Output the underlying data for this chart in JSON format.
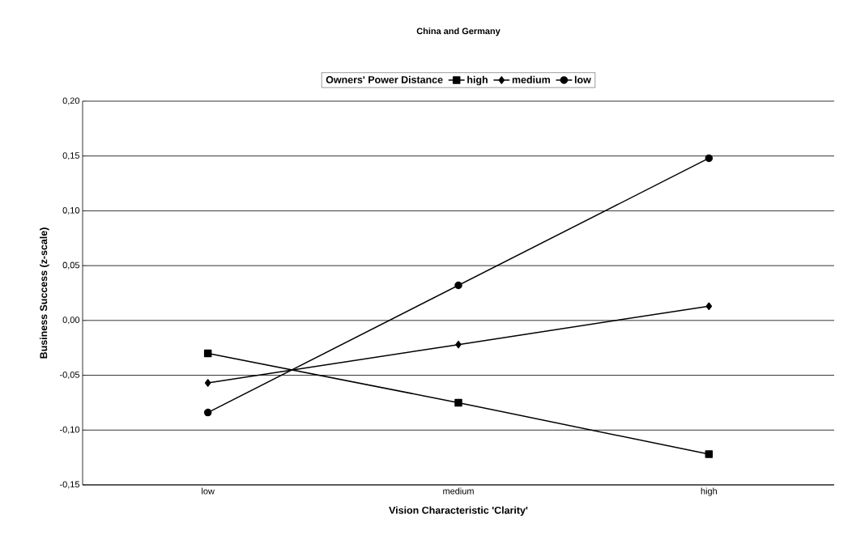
{
  "chart_data": {
    "type": "line",
    "title": "China and Germany",
    "xlabel": "Vision Characteristic 'Clarity'",
    "ylabel": "Business Success (z-scale)",
    "legend_title": "Owners' Power Distance",
    "categories": [
      "low",
      "medium",
      "high"
    ],
    "series": [
      {
        "name": "high",
        "color": "#000000",
        "marker": "square",
        "values": [
          -0.03,
          -0.075,
          -0.122
        ]
      },
      {
        "name": "medium",
        "color": "#000000",
        "marker": "diamond",
        "values": [
          -0.057,
          -0.022,
          0.013
        ]
      },
      {
        "name": "low",
        "color": "#000000",
        "marker": "circle",
        "values": [
          -0.084,
          0.032,
          0.148
        ]
      }
    ],
    "ylim": [
      -0.15,
      0.2
    ],
    "yticks": [
      {
        "value": -0.15,
        "label": "-0,15"
      },
      {
        "value": -0.1,
        "label": "-0,10"
      },
      {
        "value": -0.05,
        "label": "-0,05"
      },
      {
        "value": 0.0,
        "label": "0,00"
      },
      {
        "value": 0.05,
        "label": "0,05"
      },
      {
        "value": 0.1,
        "label": "0,10"
      },
      {
        "value": 0.15,
        "label": "0,15"
      },
      {
        "value": 0.2,
        "label": "0,20"
      }
    ],
    "grid": "y",
    "legend": "top",
    "line_style": "solid"
  }
}
